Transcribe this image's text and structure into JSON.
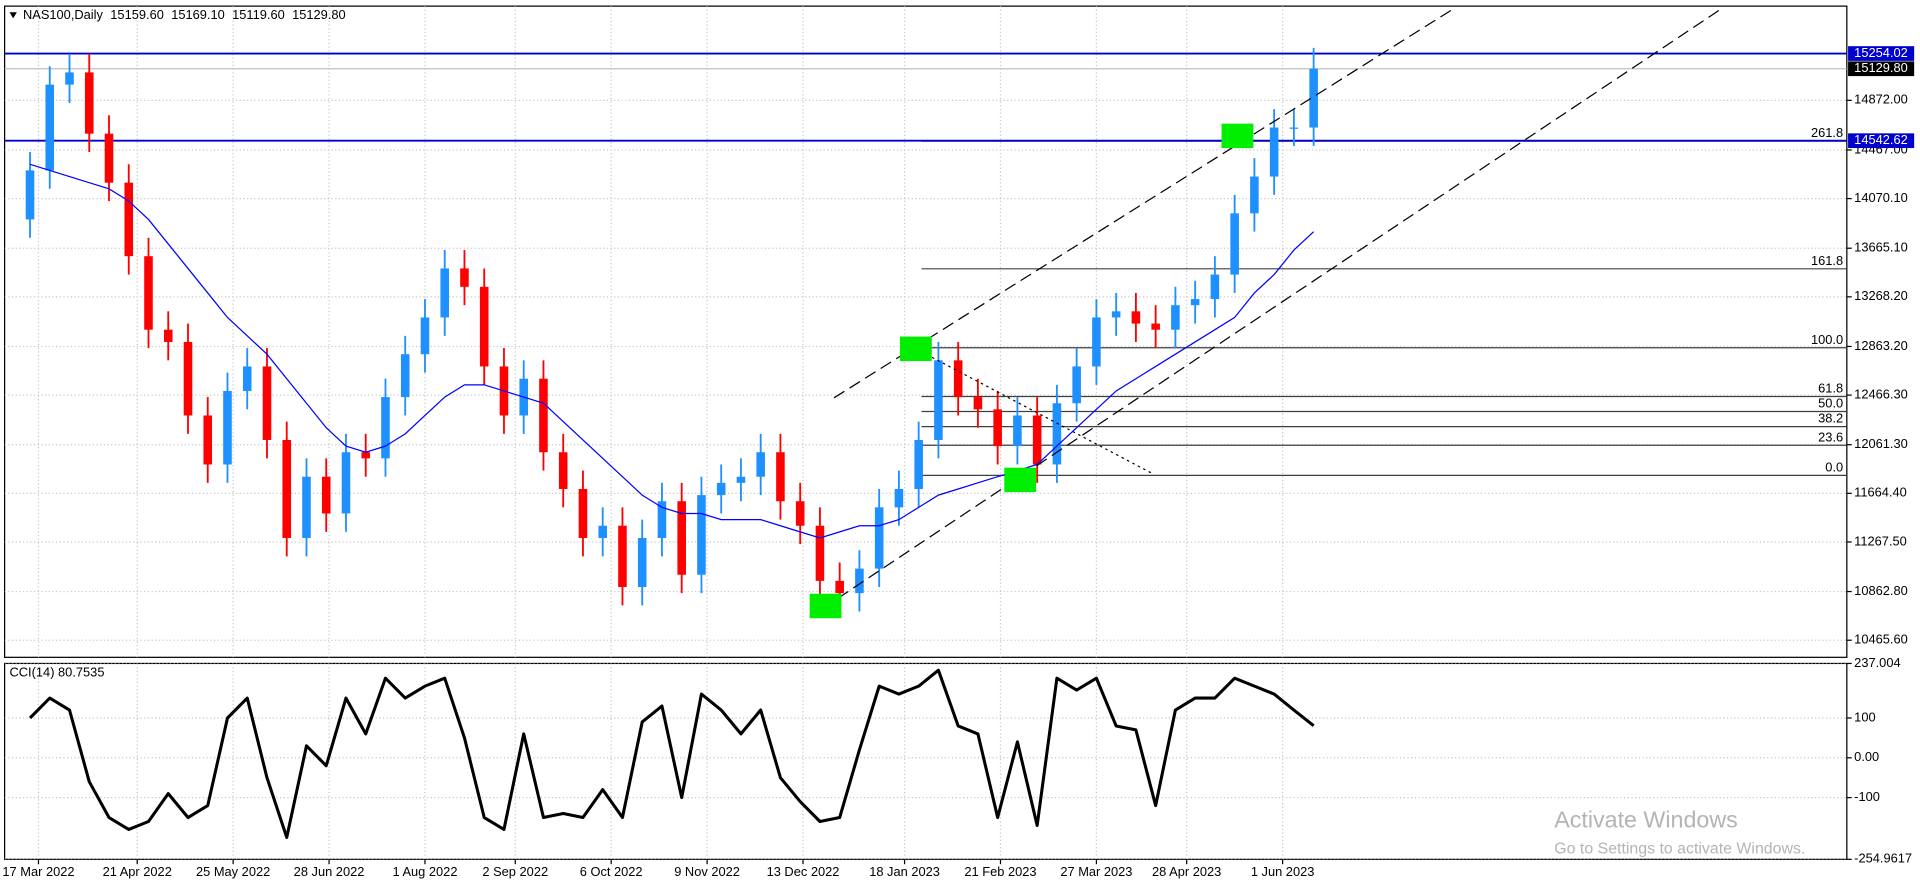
{
  "chart_data": [
    {
      "type": "candlestick",
      "title": "NAS100,Daily",
      "header_prices": [
        {
          "value": 15159.6,
          "label": "15159.60"
        },
        {
          "value": 15169.1,
          "label": "15169.10"
        },
        {
          "value": 15119.6,
          "label": "15119.60"
        },
        {
          "value": 15129.8,
          "label": "15129.80"
        }
      ],
      "x": [
        "2022-03-14",
        "2022-03-21",
        "2022-03-28",
        "2022-04-04",
        "2022-04-11",
        "2022-04-18",
        "2022-04-25",
        "2022-05-02",
        "2022-05-09",
        "2022-05-16",
        "2022-05-23",
        "2022-05-30",
        "2022-06-06",
        "2022-06-13",
        "2022-06-20",
        "2022-06-27",
        "2022-07-04",
        "2022-07-11",
        "2022-07-18",
        "2022-07-25",
        "2022-08-01",
        "2022-08-08",
        "2022-08-15",
        "2022-08-22",
        "2022-08-29",
        "2022-09-05",
        "2022-09-12",
        "2022-09-19",
        "2022-09-26",
        "2022-10-03",
        "2022-10-10",
        "2022-10-17",
        "2022-10-24",
        "2022-10-31",
        "2022-11-07",
        "2022-11-14",
        "2022-11-21",
        "2022-11-28",
        "2022-12-05",
        "2022-12-12",
        "2022-12-19",
        "2022-12-26",
        "2023-01-02",
        "2023-01-09",
        "2023-01-16",
        "2023-01-23",
        "2023-01-30",
        "2023-02-06",
        "2023-02-13",
        "2023-02-20",
        "2023-02-27",
        "2023-03-06",
        "2023-03-13",
        "2023-03-20",
        "2023-03-27",
        "2023-04-03",
        "2023-04-10",
        "2023-04-17",
        "2023-04-24",
        "2023-05-01",
        "2023-05-08",
        "2023-05-15",
        "2023-05-22",
        "2023-05-29",
        "2023-06-05",
        "2023-06-12"
      ],
      "open": [
        13900,
        14300,
        15000,
        15100,
        14600,
        14200,
        13600,
        13000,
        12900,
        12300,
        11900,
        12500,
        12700,
        12100,
        11300,
        11800,
        11500,
        12000,
        11950,
        12450,
        12800,
        13100,
        13500,
        13350,
        12700,
        12300,
        12600,
        12000,
        11700,
        11300,
        11400,
        10900,
        11300,
        11600,
        11000,
        11650,
        11750,
        11800,
        12000,
        11600,
        11400,
        10950,
        10850,
        11050,
        11550,
        11700,
        12100,
        12750,
        12450,
        12350,
        12050,
        12300,
        11900,
        12400,
        12700,
        13100,
        13150,
        13050,
        13000,
        13200,
        13250,
        13450,
        13950,
        14250,
        14650,
        14650
      ],
      "high": [
        14450,
        15150,
        15250,
        15250,
        14750,
        14350,
        13750,
        13150,
        13050,
        12450,
        12650,
        12850,
        12850,
        12250,
        11950,
        11950,
        12150,
        12150,
        12600,
        12950,
        13250,
        13650,
        13650,
        13500,
        12850,
        12750,
        12750,
        12150,
        11850,
        11550,
        11550,
        11450,
        11750,
        11750,
        11800,
        11900,
        11950,
        12150,
        12150,
        11750,
        11550,
        11100,
        11200,
        11700,
        11850,
        12250,
        12900,
        12900,
        12600,
        12500,
        12450,
        12450,
        12550,
        12850,
        13250,
        13300,
        13300,
        13200,
        13350,
        13400,
        13600,
        14100,
        14400,
        14800,
        14800,
        15300
      ],
      "low": [
        13750,
        14150,
        14850,
        14450,
        14050,
        13450,
        12850,
        12750,
        12150,
        11750,
        11750,
        12350,
        11950,
        11150,
        11150,
        11350,
        11350,
        11800,
        11800,
        12300,
        12650,
        12950,
        13200,
        12550,
        12150,
        12150,
        11850,
        11550,
        11150,
        11150,
        10750,
        10750,
        11150,
        10850,
        10850,
        11500,
        11600,
        11650,
        11450,
        11250,
        10800,
        10700,
        10700,
        10900,
        11400,
        11550,
        11950,
        12300,
        12200,
        11900,
        11900,
        11750,
        11750,
        12250,
        12550,
        12950,
        12900,
        12850,
        12850,
        13050,
        13100,
        13300,
        13800,
        14100,
        14500,
        14500
      ],
      "close": [
        14300,
        15000,
        15100,
        14600,
        14200,
        13600,
        13000,
        12900,
        12300,
        11900,
        12500,
        12700,
        12100,
        11300,
        11800,
        11500,
        12000,
        11950,
        12450,
        12800,
        13100,
        13500,
        13350,
        12700,
        12300,
        12600,
        12000,
        11700,
        11300,
        11400,
        10900,
        11300,
        11600,
        11000,
        11650,
        11750,
        11800,
        12000,
        11600,
        11400,
        10950,
        10850,
        11050,
        11550,
        11700,
        12100,
        12750,
        12450,
        12350,
        12050,
        12300,
        11900,
        12400,
        12700,
        13100,
        13150,
        13050,
        13000,
        13200,
        13250,
        13450,
        13950,
        14250,
        14650,
        14650,
        15129.8
      ],
      "up_color": "#1e90ff",
      "down_color": "#ff0000",
      "moving_average": {
        "color": "#0000ff",
        "values": [
          14350,
          14300,
          14250,
          14200,
          14150,
          14050,
          13900,
          13700,
          13500,
          13300,
          13100,
          12950,
          12800,
          12600,
          12400,
          12200,
          12050,
          12000,
          12050,
          12150,
          12300,
          12450,
          12550,
          12550,
          12500,
          12450,
          12400,
          12250,
          12100,
          11950,
          11800,
          11650,
          11550,
          11500,
          11500,
          11450,
          11450,
          11450,
          11400,
          11350,
          11300,
          11350,
          11400,
          11400,
          11450,
          11550,
          11650,
          11700,
          11750,
          11800,
          11850,
          11900,
          12050,
          12200,
          12350,
          12500,
          12600,
          12700,
          12800,
          12900,
          13000,
          13100,
          13300,
          13450,
          13650,
          13800
        ]
      },
      "xlim": [
        "2022-03-05",
        "2023-12-18"
      ],
      "xticks": [
        {
          "value": "2022-03-17",
          "label": "17 Mar 2022"
        },
        {
          "value": "2022-04-21",
          "label": "21 Apr 2022"
        },
        {
          "value": "2022-05-25",
          "label": "25 May 2022"
        },
        {
          "value": "2022-06-28",
          "label": "28 Jun 2022"
        },
        {
          "value": "2022-08-01",
          "label": "1 Aug 2022"
        },
        {
          "value": "2022-09-02",
          "label": "2 Sep 2022"
        },
        {
          "value": "2022-10-06",
          "label": "6 Oct 2022"
        },
        {
          "value": "2022-11-09",
          "label": "9 Nov 2022"
        },
        {
          "value": "2022-12-13",
          "label": "13 Dec 2022"
        },
        {
          "value": "2023-01-18",
          "label": "18 Jan 2023"
        },
        {
          "value": "2023-02-21",
          "label": "21 Feb 2023"
        },
        {
          "value": "2023-03-27",
          "label": "27 Mar 2023"
        },
        {
          "value": "2023-04-28",
          "label": "28 Apr 2023"
        },
        {
          "value": "2023-06-01",
          "label": "1 Jun 2023"
        }
      ],
      "ylim": [
        10326,
        15641
      ],
      "yticks": [
        {
          "value": 10465.6,
          "label": "10465.60"
        },
        {
          "value": 10862.8,
          "label": "10862.80"
        },
        {
          "value": 11267.5,
          "label": "11267.50"
        },
        {
          "value": 11664.4,
          "label": "11664.40"
        },
        {
          "value": 12061.3,
          "label": "12061.30"
        },
        {
          "value": 12466.3,
          "label": "12466.30"
        },
        {
          "value": 12863.2,
          "label": "12863.20"
        },
        {
          "value": 13268.2,
          "label": "13268.20"
        },
        {
          "value": 13665.1,
          "label": "13665.10"
        },
        {
          "value": 14070.1,
          "label": "14070.10"
        },
        {
          "value": 14467,
          "label": "14467.00"
        },
        {
          "value": 14872,
          "label": "14872.00"
        }
      ],
      "grid": true,
      "horizontal_lines": [
        {
          "value": 15254.02,
          "label": "15254.02",
          "color": "#0000cd"
        },
        {
          "value": 14542.62,
          "label": "14542.62",
          "color": "#0000cd"
        }
      ],
      "last_price": {
        "value": 15129.8,
        "label": "15129.80",
        "color": "#000000"
      },
      "fibonacci": {
        "start": "2023-01-24",
        "color": "#404040",
        "levels": [
          {
            "name": "0.0",
            "price": 11811
          },
          {
            "name": "23.6",
            "price": 12057
          },
          {
            "name": "38.2",
            "price": 12209
          },
          {
            "name": "50.0",
            "price": 12332
          },
          {
            "name": "61.8",
            "price": 12455
          },
          {
            "name": "100.0",
            "price": 12853
          },
          {
            "name": "161.8",
            "price": 13497
          },
          {
            "name": "261.8",
            "price": 14539
          }
        ]
      },
      "trendlines": [
        {
          "x": [
            "2022-12-20",
            "2023-11-03"
          ],
          "y": [
            10725,
            15611
          ],
          "style": "dashed"
        },
        {
          "x": [
            "2022-12-24",
            "2023-07-31"
          ],
          "y": [
            12444,
            15611
          ],
          "style": "dashed"
        },
        {
          "x": [
            "2023-01-22",
            "2023-04-16"
          ],
          "y": [
            12844,
            11824
          ],
          "style": "dotted"
        }
      ],
      "markers": {
        "color": "#00ee00",
        "x": [
          "2023-01-22",
          "2022-12-21",
          "2023-02-28",
          "2023-05-16"
        ],
        "y": [
          12844,
          10745,
          11774,
          14582
        ]
      }
    },
    {
      "type": "line",
      "title": "CCI(14) 80.7535",
      "color": "#000000",
      "x": [
        "2022-03-14",
        "2022-03-21",
        "2022-03-28",
        "2022-04-04",
        "2022-04-11",
        "2022-04-18",
        "2022-04-25",
        "2022-05-02",
        "2022-05-09",
        "2022-05-16",
        "2022-05-23",
        "2022-05-30",
        "2022-06-06",
        "2022-06-13",
        "2022-06-20",
        "2022-06-27",
        "2022-07-04",
        "2022-07-11",
        "2022-07-18",
        "2022-07-25",
        "2022-08-01",
        "2022-08-08",
        "2022-08-15",
        "2022-08-22",
        "2022-08-29",
        "2022-09-05",
        "2022-09-12",
        "2022-09-19",
        "2022-09-26",
        "2022-10-03",
        "2022-10-10",
        "2022-10-17",
        "2022-10-24",
        "2022-10-31",
        "2022-11-07",
        "2022-11-14",
        "2022-11-21",
        "2022-11-28",
        "2022-12-05",
        "2022-12-12",
        "2022-12-19",
        "2022-12-26",
        "2023-01-02",
        "2023-01-09",
        "2023-01-16",
        "2023-01-23",
        "2023-01-30",
        "2023-02-06",
        "2023-02-13",
        "2023-02-20",
        "2023-02-27",
        "2023-03-06",
        "2023-03-13",
        "2023-03-20",
        "2023-03-27",
        "2023-04-03",
        "2023-04-10",
        "2023-04-17",
        "2023-04-24",
        "2023-05-01",
        "2023-05-08",
        "2023-05-15",
        "2023-05-22",
        "2023-05-29",
        "2023-06-05",
        "2023-06-12"
      ],
      "values": [
        100,
        150,
        120,
        -60,
        -150,
        -180,
        -160,
        -90,
        -150,
        -120,
        100,
        150,
        -50,
        -200,
        30,
        -20,
        150,
        60,
        200,
        150,
        180,
        200,
        50,
        -150,
        -180,
        60,
        -150,
        -140,
        -150,
        -80,
        -150,
        90,
        130,
        -100,
        160,
        120,
        60,
        120,
        -50,
        -110,
        -160,
        -150,
        20,
        180,
        160,
        180,
        220,
        80,
        60,
        -150,
        40,
        -170,
        200,
        170,
        200,
        80,
        70,
        -120,
        120,
        150,
        150,
        200,
        180,
        160,
        120,
        80.7535
      ],
      "ylim": [
        -254.9617,
        237.004
      ],
      "yticks": [
        237.004,
        100,
        {
          "value": 0,
          "label": "0.00"
        },
        -100,
        -254.9617
      ]
    }
  ],
  "watermark": {
    "title": "Activate Windows",
    "subtitle": "Go to Settings to activate Windows."
  }
}
